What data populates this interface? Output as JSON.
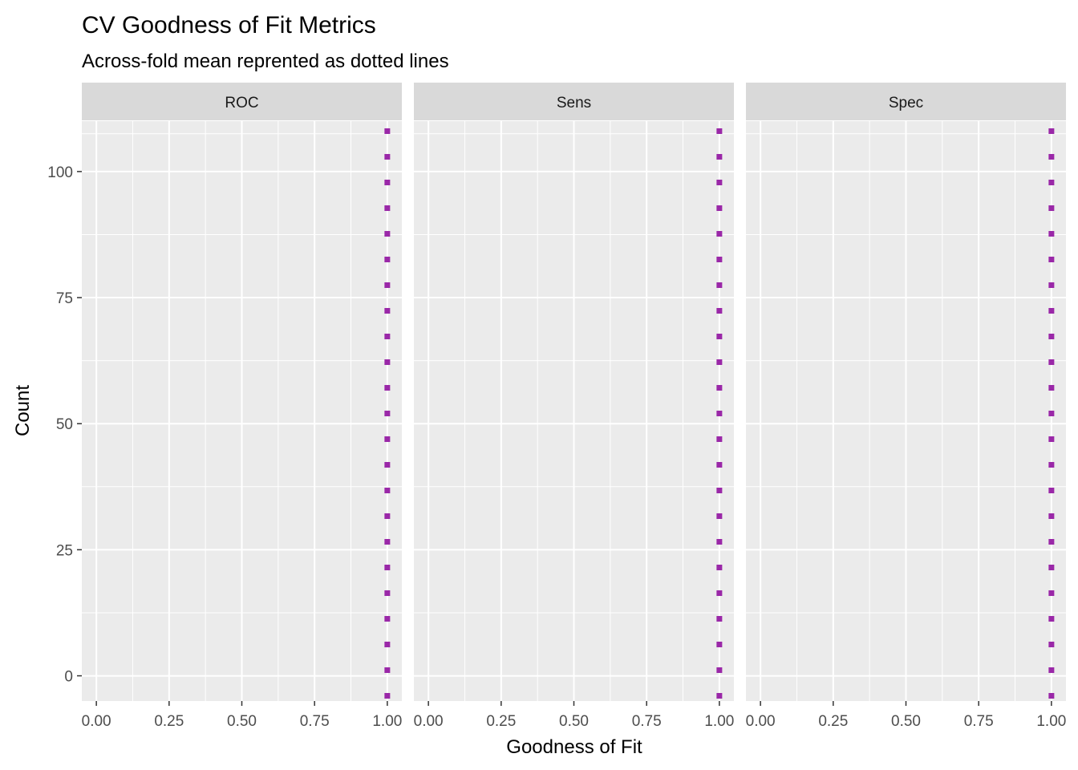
{
  "chart_data": {
    "type": "histogram",
    "title": "CV Goodness of Fit Metrics",
    "subtitle": "Across-fold mean reprented as dotted lines",
    "xlabel": "Goodness of Fit",
    "ylabel": "Count",
    "xlim": [
      -0.05,
      1.05
    ],
    "ylim": [
      -5,
      110
    ],
    "x_ticks": [
      "0.00",
      "0.25",
      "0.50",
      "0.75",
      "1.00"
    ],
    "y_ticks": [
      "0",
      "25",
      "50",
      "75",
      "100"
    ],
    "grid": true,
    "facets": [
      {
        "name": "ROC",
        "mean": 1.0,
        "values": []
      },
      {
        "name": "Sens",
        "mean": 1.0,
        "values": []
      },
      {
        "name": "Spec",
        "mean": 1.0,
        "values": []
      }
    ],
    "mean_line_color": "#9a28a8",
    "panel_background": "#ebebeb",
    "strip_background": "#d9d9d9"
  }
}
